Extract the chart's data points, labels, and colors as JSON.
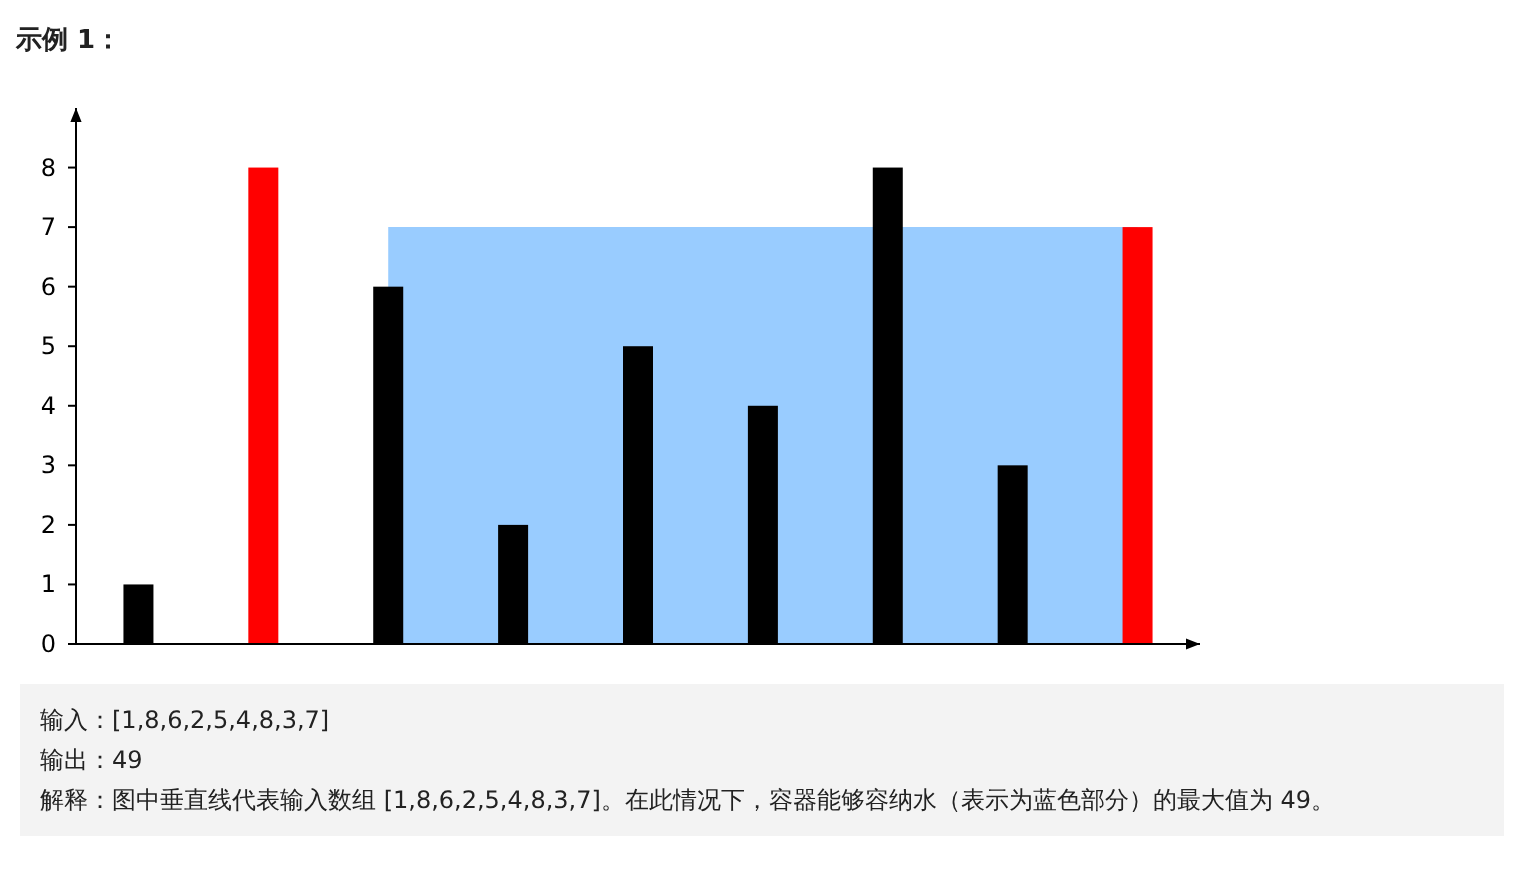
{
  "chart_data": {
    "type": "bar",
    "title": "示例 1：",
    "categories": [
      null,
      null,
      null,
      null,
      null,
      null,
      null,
      null,
      null
    ],
    "series": [
      {
        "type": "area",
        "color": "#99ccff",
        "values": [
          null,
          null,
          7,
          7,
          7,
          7,
          null,
          7,
          7
        ]
      },
      {
        "colors": [
          "#000000",
          "#ff0000",
          "#000000",
          "#000000",
          "#000000",
          "#000000",
          "#000000",
          "#000000",
          "#ff0000"
        ],
        "values": [
          1,
          8,
          6,
          2,
          5,
          4,
          8,
          3,
          7
        ]
      }
    ],
    "ylim": [
      0,
      9
    ],
    "yticks": [
      0,
      1,
      2,
      3,
      4,
      5,
      6,
      7,
      8
    ],
    "grid": false,
    "annotations": [
      "输入：[1,8,6,2,5,4,8,3,7]",
      "输出：49",
      "解释：图中垂直线代表输入数组 [1,8,6,2,5,4,8,3,7]。在此情况下，容器能够容纳水（表示为蓝色部分）的最大值为 49。"
    ]
  }
}
